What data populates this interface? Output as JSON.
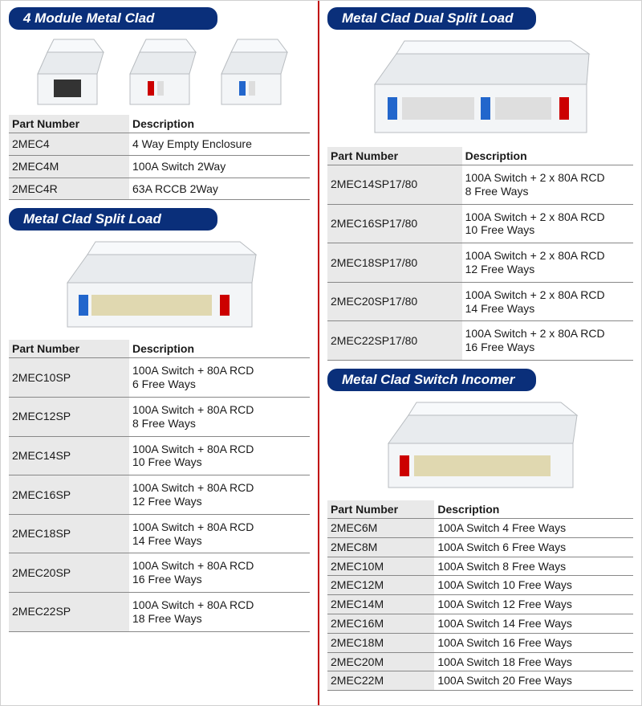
{
  "colors": {
    "header_bg": "#0a2f7a",
    "header_text": "#ffffff",
    "divider": "#c00000",
    "row_shade": "#e9e9e9",
    "border": "#888888",
    "text": "#1a1a1a"
  },
  "typography": {
    "header_fontsize": 17,
    "header_style": "bold italic",
    "table_fontsize": 14
  },
  "sections": [
    {
      "title": "4 Module Metal Clad",
      "table": {
        "columns": [
          "Part Number",
          "Description"
        ],
        "rows": [
          [
            "2MEC4",
            "4 Way Empty Enclosure"
          ],
          [
            "2MEC4M",
            "100A Switch 2Way"
          ],
          [
            "2MEC4R",
            "63A RCCB 2Way"
          ]
        ]
      }
    },
    {
      "title": "Metal Clad Split Load",
      "table": {
        "columns": [
          "Part Number",
          "Description"
        ],
        "rows": [
          [
            "2MEC10SP",
            "100A Switch + 80A RCD\n6 Free Ways"
          ],
          [
            "2MEC12SP",
            "100A Switch + 80A RCD\n8 Free Ways"
          ],
          [
            "2MEC14SP",
            "100A Switch + 80A RCD\n10 Free Ways"
          ],
          [
            "2MEC16SP",
            "100A Switch + 80A RCD\n12 Free Ways"
          ],
          [
            "2MEC18SP",
            "100A Switch + 80A RCD\n14 Free Ways"
          ],
          [
            "2MEC20SP",
            "100A Switch + 80A RCD\n16 Free Ways"
          ],
          [
            "2MEC22SP",
            "100A Switch + 80A RCD\n18 Free Ways"
          ]
        ]
      }
    },
    {
      "title": "Metal Clad Dual Split Load",
      "table": {
        "columns": [
          "Part Number",
          "Description"
        ],
        "rows": [
          [
            "2MEC14SP17/80",
            "100A Switch + 2 x 80A RCD\n8 Free Ways"
          ],
          [
            "2MEC16SP17/80",
            "100A Switch + 2 x 80A RCD\n10 Free Ways"
          ],
          [
            "2MEC18SP17/80",
            "100A Switch + 2 x 80A RCD\n12 Free Ways"
          ],
          [
            "2MEC20SP17/80",
            "100A Switch + 2 x 80A RCD\n14 Free Ways"
          ],
          [
            "2MEC22SP17/80",
            "100A Switch + 2 x 80A RCD\n16 Free Ways"
          ]
        ]
      }
    },
    {
      "title": "Metal Clad Switch Incomer",
      "table": {
        "columns": [
          "Part Number",
          "Description"
        ],
        "rows": [
          [
            "2MEC6M",
            "100A Switch 4 Free Ways"
          ],
          [
            "2MEC8M",
            "100A Switch 6 Free Ways"
          ],
          [
            "2MEC10M",
            "100A Switch 8 Free Ways"
          ],
          [
            "2MEC12M",
            "100A Switch 10 Free Ways"
          ],
          [
            "2MEC14M",
            "100A Switch 12 Free Ways"
          ],
          [
            "2MEC16M",
            "100A Switch 14 Free Ways"
          ],
          [
            "2MEC18M",
            "100A Switch 16 Free Ways"
          ],
          [
            "2MEC20M",
            "100A Switch 18 Free Ways"
          ],
          [
            "2MEC22M",
            "100A Switch 20 Free Ways"
          ]
        ]
      }
    }
  ]
}
